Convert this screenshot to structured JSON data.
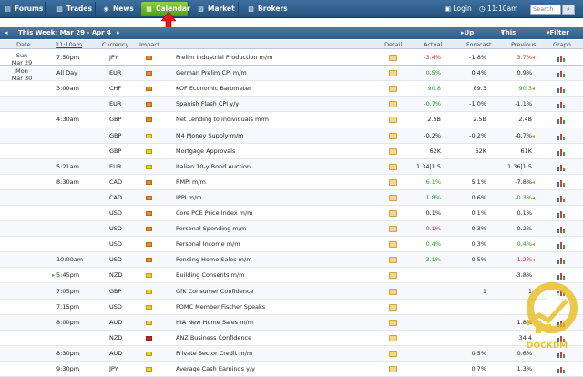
{
  "nav": {
    "tabs": [
      {
        "label": "Forums",
        "icon": "forum-icon"
      },
      {
        "label": "Trades",
        "icon": "chart-icon"
      },
      {
        "label": "News",
        "icon": "globe-icon"
      },
      {
        "label": "Calendar",
        "icon": "calendar-icon",
        "active": true
      },
      {
        "label": "Market",
        "icon": "market-icon"
      },
      {
        "label": "Brokers",
        "icon": "brokers-icon"
      }
    ],
    "login": "Login",
    "time": "11:10am",
    "search_placeholder": "Search"
  },
  "week": {
    "label": "This Week: Mar 29 - Apr 4",
    "up_next": "Up Next",
    "this_week": "This Week",
    "filter": "Filter"
  },
  "columns": {
    "date": "Date",
    "time": "11:10am",
    "currency": "Currency",
    "impact": "Impact",
    "detail": "Detail",
    "actual": "Actual",
    "forecast": "Forecast",
    "previous": "Previous",
    "graph": "Graph"
  },
  "days": [
    {
      "day": "Sun",
      "date": "Mar 29"
    },
    {
      "day": "Mon",
      "date": "Mar 30"
    }
  ],
  "rows": [
    {
      "time": "7:50pm",
      "cur": "JPY",
      "impact": "orange",
      "event": "Prelim Industrial Production m/m",
      "actual": "-3.4%",
      "ac": "red",
      "forecast": "-1.8%",
      "previous": "3.7%",
      "pc": "red",
      "rev": true
    },
    {
      "time": "All Day",
      "cur": "EUR",
      "impact": "orange",
      "event": "German Prelim CPI m/m",
      "actual": "0.5%",
      "ac": "green",
      "forecast": "0.4%",
      "previous": "0.9%",
      "pc": ""
    },
    {
      "time": "3:00am",
      "cur": "CHF",
      "impact": "orange",
      "event": "KOF Economic Barometer",
      "actual": "90.8",
      "ac": "green",
      "forecast": "89.3",
      "previous": "90.3",
      "pc": "green",
      "rev": true
    },
    {
      "time": "",
      "cur": "EUR",
      "impact": "orange",
      "event": "Spanish Flash CPI y/y",
      "actual": "-0.7%",
      "ac": "green",
      "forecast": "-1.0%",
      "previous": "-1.1%",
      "pc": ""
    },
    {
      "time": "4:30am",
      "cur": "GBP",
      "impact": "orange",
      "event": "Net Lending to Individuals m/m",
      "actual": "2.5B",
      "ac": "",
      "forecast": "2.5B",
      "previous": "2.4B",
      "pc": ""
    },
    {
      "time": "",
      "cur": "GBP",
      "impact": "yellow",
      "event": "M4 Money Supply m/m",
      "actual": "-0.2%",
      "ac": "",
      "forecast": "-0.2%",
      "previous": "-0.7%",
      "pc": "",
      "rev": true
    },
    {
      "time": "",
      "cur": "GBP",
      "impact": "yellow",
      "event": "Mortgage Approvals",
      "actual": "62K",
      "ac": "",
      "forecast": "62K",
      "previous": "61K",
      "pc": ""
    },
    {
      "time": "5:21am",
      "cur": "EUR",
      "impact": "yellow",
      "event": "Italian 10-y Bond Auction",
      "actual": "1.34|1.5",
      "ac": "",
      "forecast": "",
      "previous": "1.36|1.5",
      "pc": ""
    },
    {
      "time": "8:30am",
      "cur": "CAD",
      "impact": "orange",
      "event": "RMPI m/m",
      "actual": "6.1%",
      "ac": "green",
      "forecast": "5.1%",
      "previous": "-7.8%",
      "pc": "",
      "rev": true
    },
    {
      "time": "",
      "cur": "CAD",
      "impact": "orange",
      "event": "IPPI m/m",
      "actual": "1.8%",
      "ac": "green",
      "forecast": "0.6%",
      "previous": "-0.3%",
      "pc": "green",
      "rev": true
    },
    {
      "time": "",
      "cur": "USD",
      "impact": "orange",
      "event": "Core PCE Price Index m/m",
      "actual": "0.1%",
      "ac": "",
      "forecast": "0.1%",
      "previous": "0.1%",
      "pc": ""
    },
    {
      "time": "",
      "cur": "USD",
      "impact": "orange",
      "event": "Personal Spending m/m",
      "actual": "0.1%",
      "ac": "red",
      "forecast": "0.3%",
      "previous": "-0.2%",
      "pc": ""
    },
    {
      "time": "",
      "cur": "USD",
      "impact": "orange",
      "event": "Personal Income m/m",
      "actual": "0.4%",
      "ac": "green",
      "forecast": "0.3%",
      "previous": "0.4%",
      "pc": "green",
      "rev": true
    },
    {
      "time": "10:00am",
      "cur": "USD",
      "impact": "orange",
      "event": "Pending Home Sales m/m",
      "actual": "3.1%",
      "ac": "green",
      "forecast": "0.5%",
      "previous": "1.2%",
      "pc": "red",
      "rev": true
    },
    {
      "time": "5:45pm",
      "cur": "NZD",
      "impact": "yellow",
      "event": "Building Consents m/m",
      "actual": "",
      "ac": "",
      "forecast": "",
      "previous": "-3.8%",
      "pc": "",
      "next": true
    },
    {
      "time": "7:05pm",
      "cur": "GBP",
      "impact": "yellow",
      "event": "GfK Consumer Confidence",
      "actual": "",
      "ac": "",
      "forecast": "1",
      "previous": "1",
      "pc": ""
    },
    {
      "time": "7:15pm",
      "cur": "USD",
      "impact": "yellow",
      "event": "FOMC Member Fischer Speaks",
      "actual": "",
      "ac": "",
      "forecast": "",
      "previous": "",
      "pc": ""
    },
    {
      "time": "8:00pm",
      "cur": "AUD",
      "impact": "yellow",
      "event": "HIA New Home Sales m/m",
      "actual": "",
      "ac": "",
      "forecast": "",
      "previous": "1.8%",
      "pc": ""
    },
    {
      "time": "",
      "cur": "NZD",
      "impact": "red",
      "event": "ANZ Business Confidence",
      "actual": "",
      "ac": "",
      "forecast": "",
      "previous": "34.4",
      "pc": ""
    },
    {
      "time": "8:30pm",
      "cur": "AUD",
      "impact": "yellow",
      "event": "Private Sector Credit m/m",
      "actual": "",
      "ac": "",
      "forecast": "0.5%",
      "previous": "0.6%",
      "pc": ""
    },
    {
      "time": "9:30pm",
      "cur": "JPY",
      "impact": "yellow",
      "event": "Average Cash Earnings y/y",
      "actual": "",
      "ac": "",
      "forecast": "0.7%",
      "previous": "1.3%",
      "pc": ""
    }
  ],
  "colors": {
    "orange": "#f08a24",
    "yellow": "#f0d020",
    "red": "#d42020",
    "green": "#2a9a2a"
  },
  "watermark": "DOCKDM"
}
